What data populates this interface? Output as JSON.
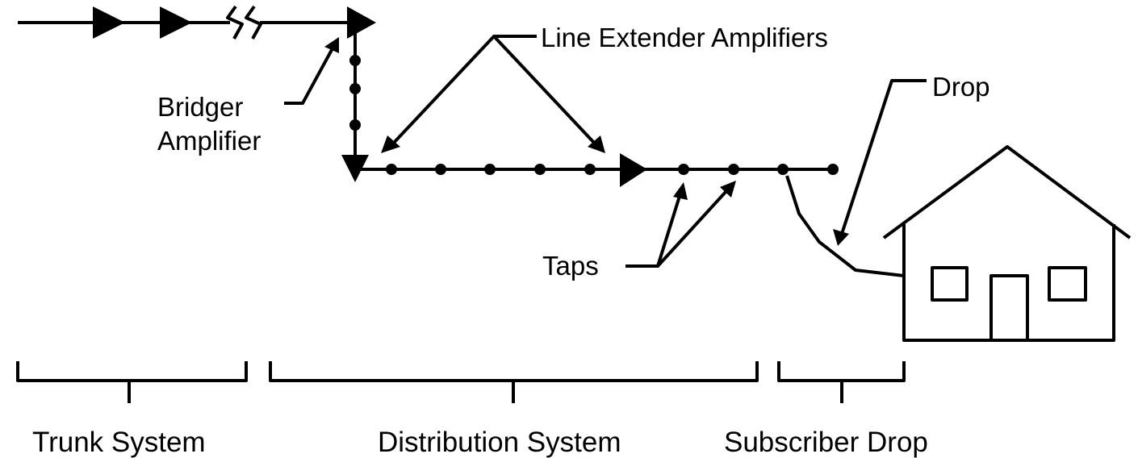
{
  "labels": {
    "line_extender": "Line Extender Amplifiers",
    "bridger": [
      "Bridger",
      "Amplifier"
    ],
    "drop": "Drop",
    "taps": "Taps"
  },
  "sections": [
    "Trunk System",
    "Distribution System",
    "Subscriber Drop"
  ]
}
